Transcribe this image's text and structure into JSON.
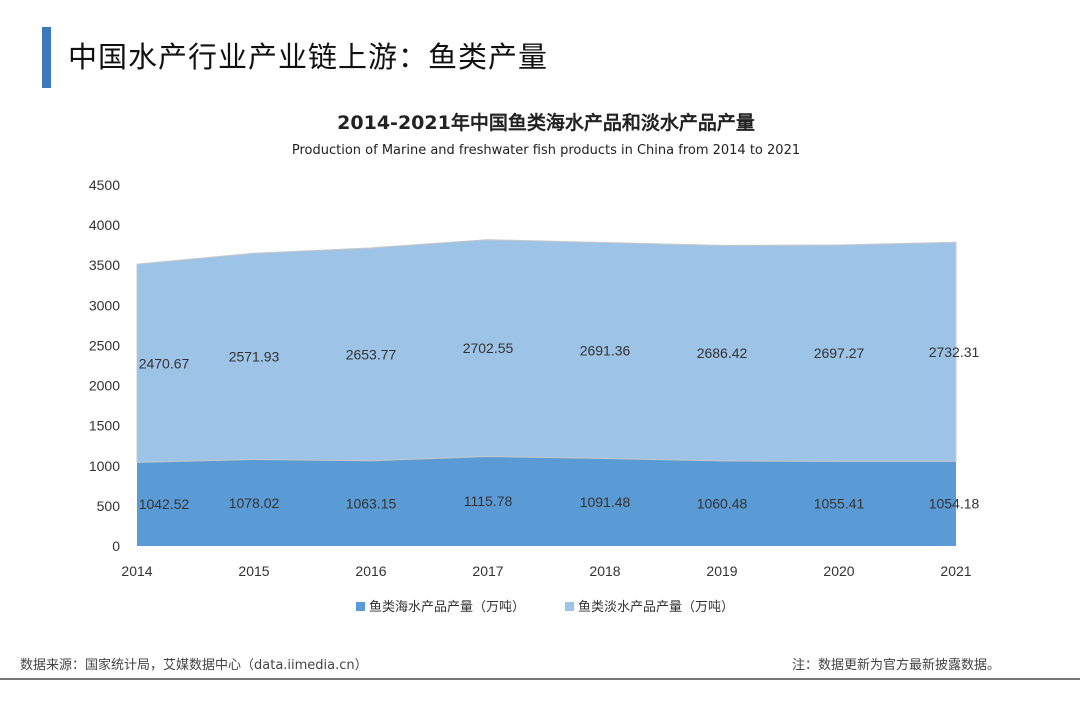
{
  "header": {
    "title": "中国水产行业产业链上游：鱼类产量"
  },
  "chart_data": {
    "type": "area",
    "stacked": true,
    "title": "2014-2021年中国鱼类海水产品和淡水产品产量",
    "subtitle": "Production of Marine and freshwater fish products in China from 2014 to 2021",
    "categories": [
      "2014",
      "2015",
      "2016",
      "2017",
      "2018",
      "2019",
      "2020",
      "2021"
    ],
    "series": [
      {
        "name": "鱼类海水产品产量（万吨）",
        "color": "#5b9bd5",
        "values": [
          1042.52,
          1078.02,
          1063.15,
          1115.78,
          1091.48,
          1060.48,
          1055.41,
          1054.18
        ],
        "labels": [
          "1042.52",
          "1078.02",
          "1063.15",
          "1115.78",
          "1091.48",
          "1060.48",
          "1055.41",
          "1054.18"
        ]
      },
      {
        "name": "鱼类淡水产品产量（万吨）",
        "color": "#9dc3e6",
        "values": [
          2470.67,
          2571.93,
          2653.77,
          2702.55,
          2691.36,
          2686.42,
          2697.27,
          2732.31
        ],
        "labels": [
          "2470.67",
          "2571.93",
          "2653.77",
          "2702.55",
          "2691.36",
          "2686.42",
          "2697.27",
          "2732.31"
        ]
      }
    ],
    "ylim": [
      0,
      4500
    ],
    "yticks": [
      "0",
      "500",
      "1000",
      "1500",
      "2000",
      "2500",
      "3000",
      "3500",
      "4000",
      "4500"
    ],
    "grid": false,
    "legend": "bottom"
  },
  "footer": {
    "source": "数据来源：国家统计局，艾媒数据中心（data.iimedia.cn）",
    "note": "注：数据更新为官方最新披露数据。"
  }
}
